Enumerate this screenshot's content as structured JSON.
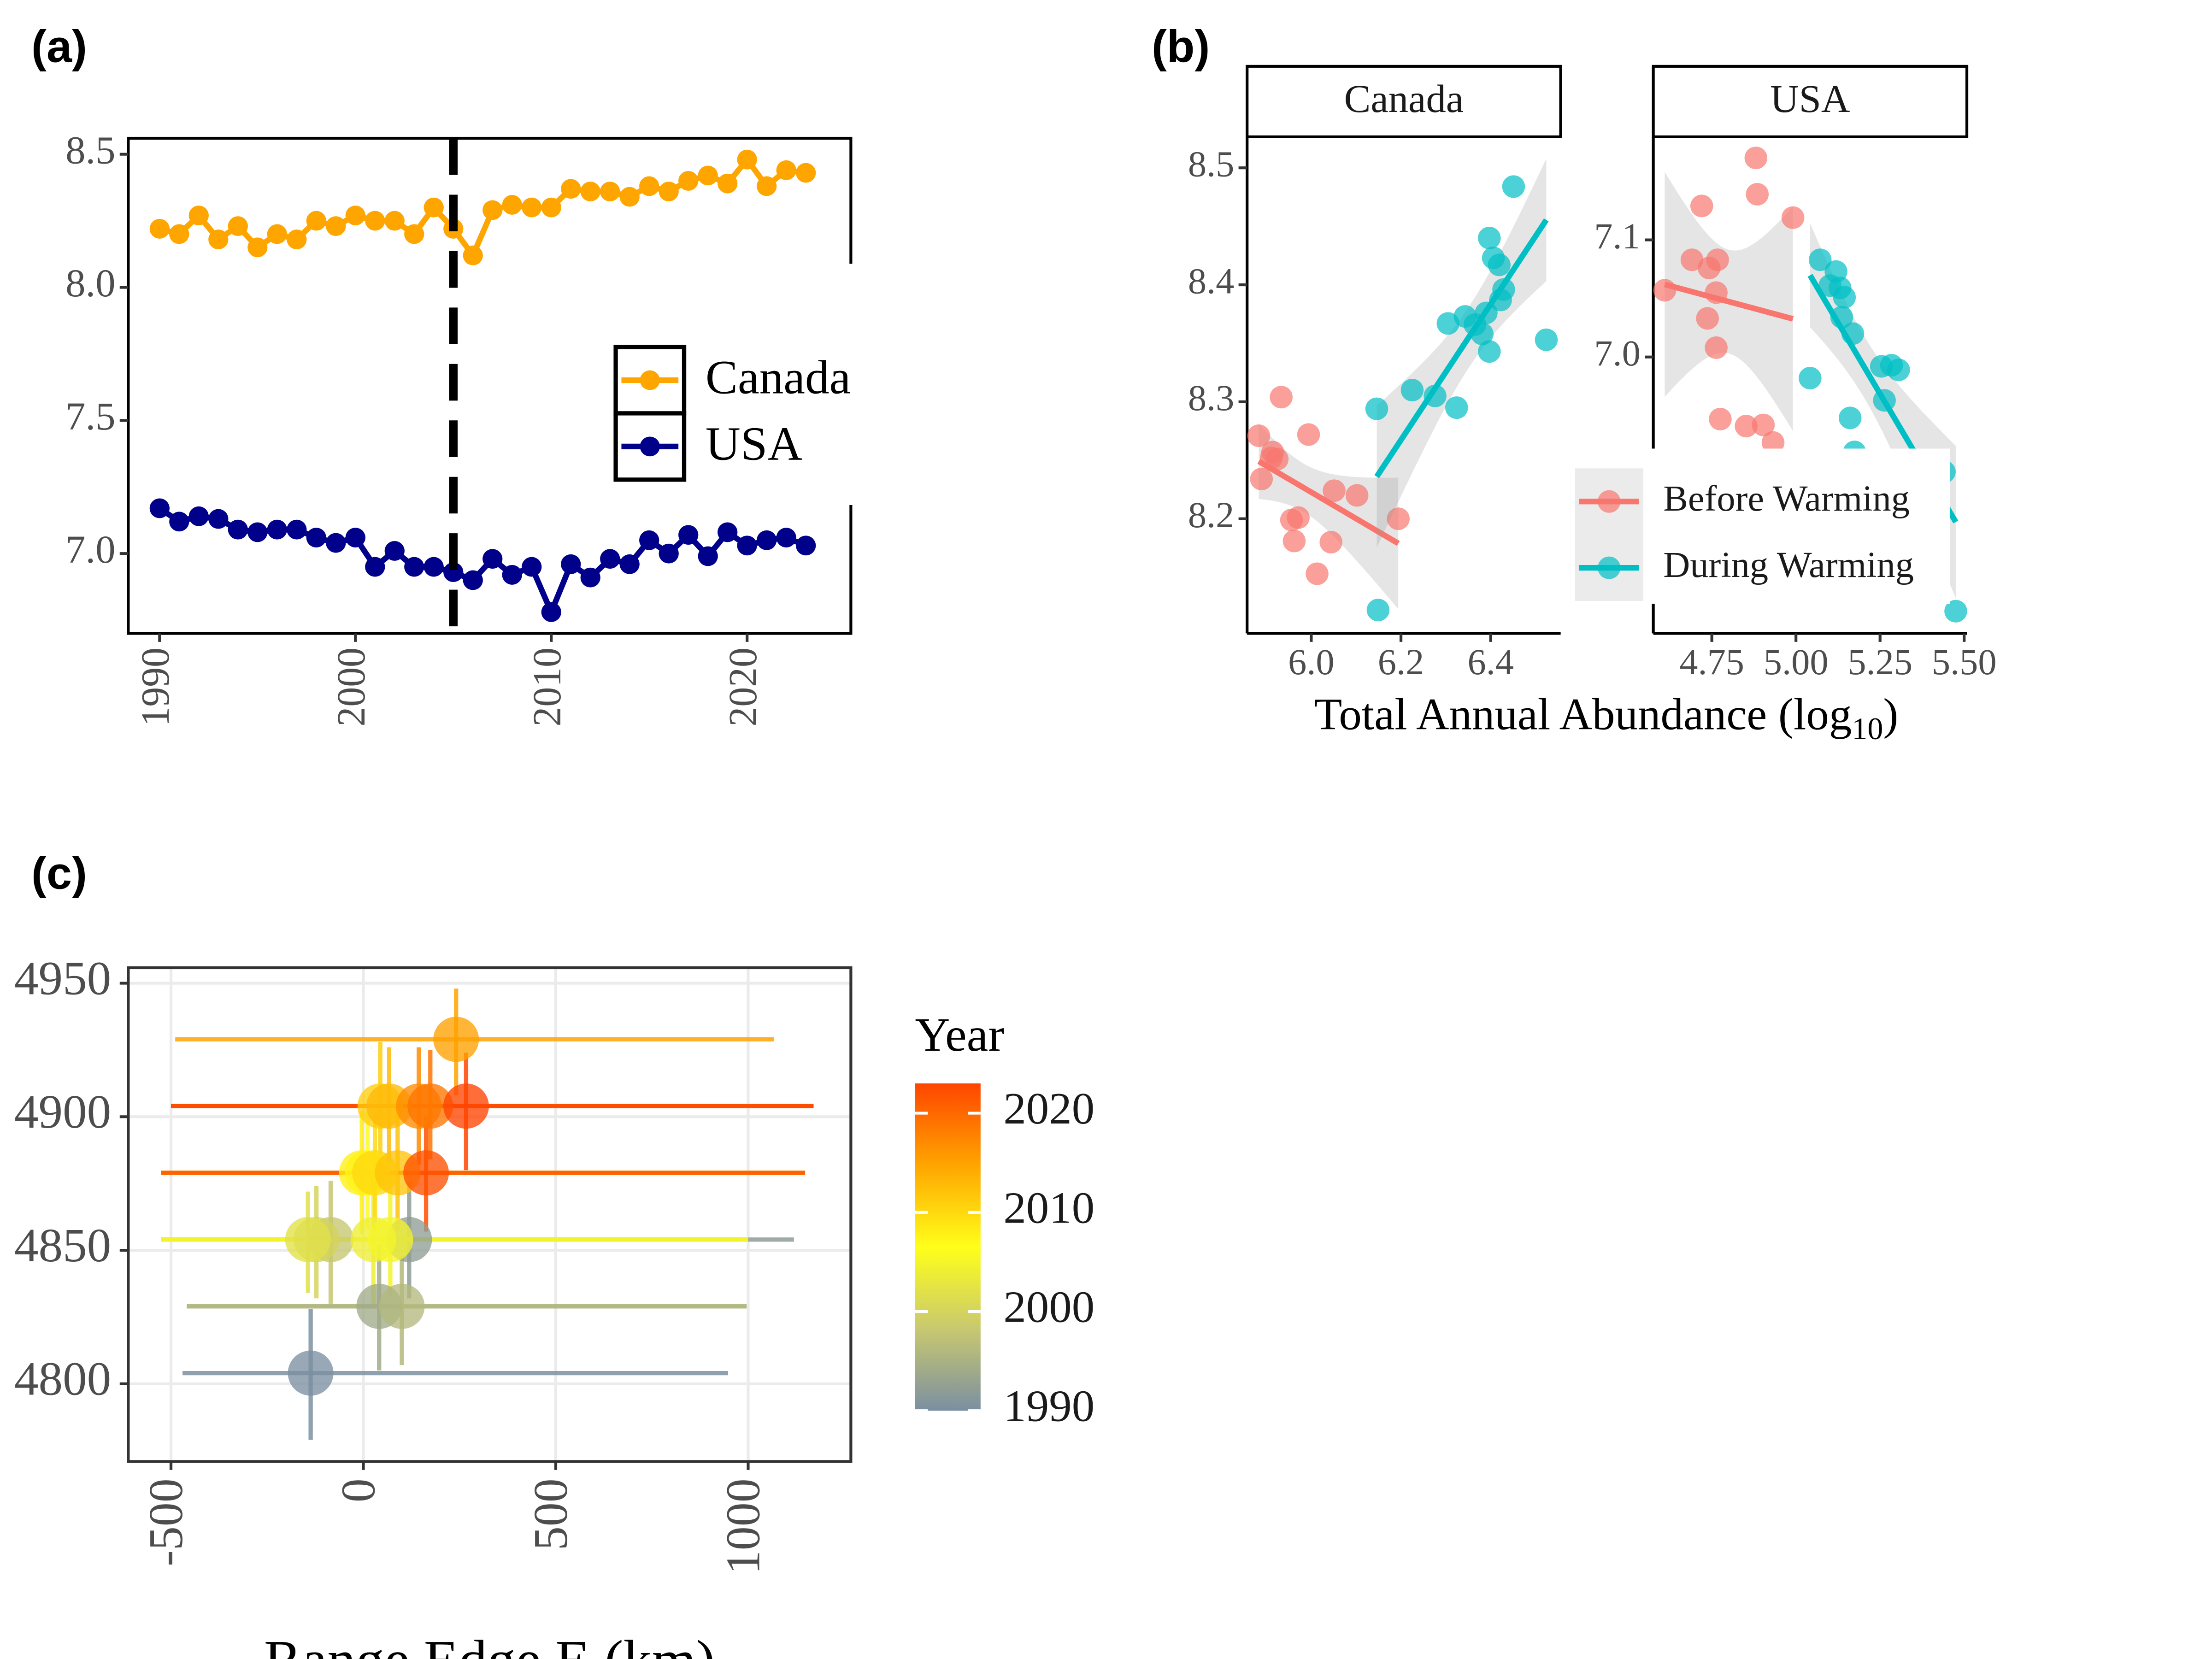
{
  "chart_data": [
    {
      "type": "line",
      "label": "(a)",
      "x": [
        1990,
        1991,
        1992,
        1993,
        1994,
        1995,
        1996,
        1997,
        1998,
        1999,
        2000,
        2001,
        2002,
        2003,
        2004,
        2005,
        2006,
        2007,
        2008,
        2009,
        2010,
        2011,
        2012,
        2013,
        2014,
        2015,
        2016,
        2017,
        2018,
        2019,
        2020,
        2021,
        2022,
        2023
      ],
      "series": [
        {
          "name": "Canada",
          "color": "#FFA500",
          "values": [
            8.22,
            8.2,
            8.27,
            8.18,
            8.23,
            8.15,
            8.2,
            8.18,
            8.25,
            8.23,
            8.27,
            8.25,
            8.25,
            8.2,
            8.3,
            8.22,
            8.12,
            8.29,
            8.31,
            8.3,
            8.3,
            8.37,
            8.36,
            8.36,
            8.34,
            8.38,
            8.36,
            8.4,
            8.42,
            8.39,
            8.48,
            8.38,
            8.44,
            8.43
          ]
        },
        {
          "name": "USA",
          "color": "#00008B",
          "values": [
            7.17,
            7.12,
            7.14,
            7.13,
            7.09,
            7.08,
            7.09,
            7.09,
            7.06,
            7.04,
            7.06,
            6.95,
            7.01,
            6.95,
            6.95,
            6.93,
            6.9,
            6.98,
            6.92,
            6.95,
            6.78,
            6.96,
            6.91,
            6.98,
            6.96,
            7.05,
            7.0,
            7.07,
            6.99,
            7.08,
            7.03,
            7.05,
            7.06,
            7.03
          ]
        }
      ],
      "vline": 2005,
      "xlim": [
        1988.4,
        2025.3
      ],
      "xticks": [
        1990,
        2000,
        2010,
        2020
      ],
      "ylim": [
        6.7,
        8.56
      ],
      "yticks": [
        {
          "value": 7,
          "label": "7.0"
        },
        7.5,
        {
          "value": 8,
          "label": "8.0"
        },
        8.5
      ],
      "legend": "right"
    },
    {
      "type": "facet_scatter",
      "label": "(b)",
      "xlabel": "Total Annual Abundance (log",
      "xlabel_sub": "10",
      "xlabel_end": ")",
      "series": [
        {
          "name": "Before Warming",
          "color": "#F8766D"
        },
        {
          "name": "During Warming",
          "color": "#00BFC4"
        }
      ],
      "legend": "bottom-right",
      "facets": [
        {
          "title": "Canada",
          "xlim": [
            5.857,
            6.556
          ],
          "ylim": [
            8.102,
            8.5265
          ],
          "xticks": [
            {
              "value": 6,
              "label": "6.0"
            },
            6.2,
            6.4
          ],
          "yticks": [
            8.2,
            8.3,
            8.4,
            8.5
          ],
          "data": [
            {
              "x": [
                5.883,
                5.933,
                5.911,
                5.924,
                5.889,
                5.914,
                5.994,
                5.956,
                5.971,
                5.962,
                6.013,
                6.051,
                6.102,
                6.044,
                6.194
              ],
              "values": [
                8.271,
                8.304,
                8.252,
                8.251,
                8.234,
                8.257,
                8.272,
                8.199,
                8.201,
                8.181,
                8.153,
                8.224,
                8.22,
                8.18,
                8.2
              ]
            },
            {
              "x": [
                6.149,
                6.146,
                6.225,
                6.276,
                6.324,
                6.305,
                6.343,
                6.365,
                6.381,
                6.397,
                6.39,
                6.422,
                6.429,
                6.397,
                6.406,
                6.419,
                6.451,
                6.524
              ],
              "values": [
                8.122,
                8.294,
                8.31,
                8.305,
                8.295,
                8.367,
                8.373,
                8.366,
                8.358,
                8.343,
                8.376,
                8.387,
                8.396,
                8.44,
                8.423,
                8.417,
                8.484,
                8.353
              ]
            }
          ]
        },
        {
          "title": "USA",
          "xlim": [
            4.576,
            5.508
          ],
          "ylim": [
            6.764,
            7.188
          ],
          "xticks": [
            4.75,
            {
              "value": 5,
              "label": "5.00"
            },
            5.25,
            {
              "value": 5.5,
              "label": "5.50"
            }
          ],
          "yticks": [
            {
              "value": 7,
              "label": "7.0"
            },
            7.1
          ],
          "data": [
            {
              "x": [
                4.61,
                4.691,
                4.72,
                4.742,
                4.767,
                4.763,
                4.737,
                4.763,
                4.775,
                4.852,
                4.903,
                4.932,
                4.881,
                4.885,
                4.991
              ],
              "values": [
                7.057,
                7.083,
                7.129,
                7.076,
                7.083,
                7.055,
                7.033,
                7.008,
                6.947,
                6.941,
                6.942,
                6.927,
                7.17,
                7.139,
                7.119
              ]
            },
            {
              "x": [
                5.042,
                5.072,
                5.119,
                5.101,
                5.131,
                5.144,
                5.136,
                5.169,
                5.161,
                5.174,
                5.254,
                5.284,
                5.305,
                5.263,
                5.441,
                5.475
              ],
              "values": [
                6.982,
                7.083,
                7.073,
                7.061,
                7.059,
                7.051,
                7.034,
                7.02,
                6.948,
                6.919,
                6.992,
                6.993,
                6.989,
                6.963,
                6.902,
                6.783
              ]
            }
          ]
        }
      ]
    },
    {
      "type": "errorbar_scatter",
      "label": "(c)",
      "xlabel": "Range Edge E (km)",
      "years": [
        1990,
        1992,
        1994,
        1996,
        1998,
        2000,
        2002,
        2004,
        2005,
        2006,
        2008,
        2010,
        2011,
        2012,
        2013,
        2015,
        2017,
        2019,
        2022,
        2023
      ],
      "x": [
        -137,
        119,
        41,
        100,
        -85,
        -122,
        -144,
        26,
        70,
        11,
        -4,
        30,
        44,
        89,
        67,
        241,
        144,
        174,
        163,
        267
      ],
      "values": [
        4804,
        4854,
        4829,
        4829,
        4854,
        4854,
        4854,
        4854,
        4854,
        4879,
        4879,
        4879,
        4904,
        4879,
        4904,
        4929,
        4904,
        4904,
        4879,
        4904
      ],
      "xlo": [
        -470,
        -526,
        -459,
        -459,
        -526,
        -526,
        -526,
        -526,
        -526,
        -526,
        -526,
        -526,
        -500,
        -526,
        -500,
        -489,
        -500,
        -500,
        -526,
        -500
      ],
      "xhi": [
        948,
        1119,
        996,
        996,
        1000,
        1000,
        1000,
        1000,
        1000,
        1148,
        1148,
        1148,
        1170,
        1148,
        1170,
        1067,
        1170,
        1170,
        1148,
        1170
      ],
      "ylo": [
        4779,
        4832,
        4805,
        4807,
        4830,
        4832,
        4834,
        4830,
        4833,
        4858,
        4856,
        4857,
        4882,
        4857,
        4883,
        4908,
        4882,
        4884,
        4857,
        4880
      ],
      "yhi": [
        4828,
        4876,
        4852,
        4848,
        4876,
        4874,
        4872,
        4878,
        4876,
        4902,
        4902,
        4902,
        4928,
        4903,
        4926,
        4948,
        4926,
        4925,
        4900,
        4924
      ],
      "xlim": [
        -611,
        1267
      ],
      "xticks": [
        -500,
        0,
        500,
        1000
      ],
      "ylim": [
        4770.9,
        4955.8
      ],
      "yticks": [
        4800,
        4850,
        4900,
        4950
      ],
      "grid": true,
      "colorbar": {
        "title": "Year",
        "range": [
          1990,
          2023
        ],
        "colors": [
          "#7B8FA1",
          "#C8C870",
          "#FFFF1A",
          "#FFA500",
          "#FF4500"
        ],
        "ticks": [
          1990,
          2000,
          2010,
          2020
        ]
      }
    }
  ]
}
